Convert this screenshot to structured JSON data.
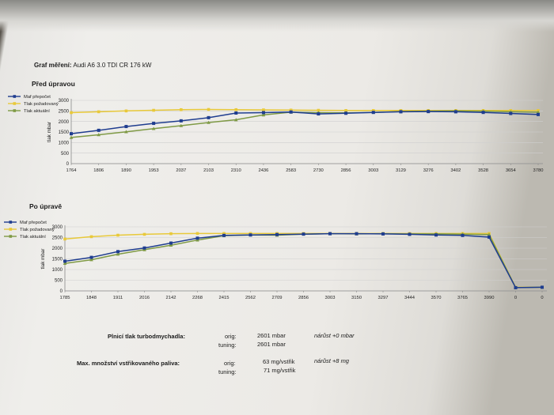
{
  "document": {
    "title_label": "Graf měření:",
    "title_value": "Audi A6 3.0 TDI CR 176 kW"
  },
  "colors": {
    "calc": "#1f3d8f",
    "target": "#e8c93a",
    "actual": "#7f9a45",
    "grid": "#cfcfcf",
    "axis": "#8a8a8a"
  },
  "chart_data": [
    {
      "type": "line",
      "title": "Před úpravou",
      "ylabel": "tlak mbar",
      "xlabel": "",
      "ylim": [
        0,
        3000
      ],
      "yticks": [
        0,
        500,
        1000,
        1500,
        2000,
        2500,
        3000
      ],
      "x": [
        "1764",
        "1806",
        "1890",
        "1953",
        "2037",
        "2103",
        "2310",
        "2436",
        "2583",
        "2730",
        "2856",
        "3003",
        "3129",
        "3276",
        "3402",
        "3528",
        "3654",
        "3780"
      ],
      "legend_position": "top-left",
      "grid": true,
      "series": [
        {
          "name": "Maf přepočet",
          "color_key": "calc",
          "values": [
            1420,
            1580,
            1760,
            1910,
            2030,
            2180,
            2400,
            2420,
            2450,
            2360,
            2390,
            2430,
            2460,
            2470,
            2460,
            2430,
            2380,
            2330
          ]
        },
        {
          "name": "Tlak požadovaný",
          "color_key": "target",
          "values": [
            2420,
            2460,
            2500,
            2530,
            2560,
            2570,
            2560,
            2550,
            2540,
            2530,
            2520,
            2520,
            2520,
            2520,
            2520,
            2520,
            2520,
            2520
          ]
        },
        {
          "name": "Tlak aktuální",
          "color_key": "actual",
          "values": [
            1240,
            1370,
            1510,
            1660,
            1800,
            1950,
            2080,
            2310,
            2440,
            2420,
            2410,
            2430,
            2470,
            2490,
            2500,
            2490,
            2460,
            2440
          ]
        }
      ]
    },
    {
      "type": "line",
      "title": "Po úpravě",
      "ylabel": "tlak mbar",
      "xlabel": "",
      "ylim": [
        0,
        3000
      ],
      "yticks": [
        0,
        500,
        1000,
        1500,
        2000,
        2500,
        3000
      ],
      "x": [
        "1785",
        "1848",
        "1911",
        "2016",
        "2142",
        "2268",
        "2415",
        "2562",
        "2709",
        "2856",
        "3003",
        "3150",
        "3297",
        "3444",
        "3570",
        "3765",
        "3990",
        "0",
        "0"
      ],
      "legend_position": "top-left",
      "grid": true,
      "series": [
        {
          "name": "Maf přepočet",
          "color_key": "calc",
          "values": [
            1390,
            1570,
            1840,
            2010,
            2240,
            2470,
            2600,
            2620,
            2640,
            2660,
            2680,
            2680,
            2670,
            2650,
            2620,
            2600,
            2520,
            150,
            170
          ]
        },
        {
          "name": "Tlak požadovaný",
          "color_key": "target",
          "values": [
            2430,
            2540,
            2610,
            2650,
            2680,
            2690,
            2690,
            2690,
            2690,
            2690,
            2690,
            2690,
            2690,
            2690,
            2690,
            2690,
            2690,
            170,
            170
          ]
        },
        {
          "name": "Tlak aktuální",
          "color_key": "actual",
          "values": [
            1290,
            1460,
            1720,
            1930,
            2140,
            2380,
            2590,
            2620,
            2610,
            2660,
            2680,
            2670,
            2680,
            2670,
            2670,
            2660,
            2640,
            160,
            170
          ]
        }
      ]
    }
  ],
  "summary": {
    "boost_label": "Plnicí tlak turbodmychadla:",
    "fuel_label": "Max. množství vstřikovaného paliva:",
    "orig_label": "orig:",
    "tuning_label": "tuning:",
    "boost_orig": "2601 mbar",
    "boost_tuning": "2601 mbar",
    "boost_gain": "nárůst +0 mbar",
    "fuel_orig": "63 mg/vstřik",
    "fuel_tuning": "71 mg/vstřik",
    "fuel_gain": "nárůst +8 mg"
  }
}
